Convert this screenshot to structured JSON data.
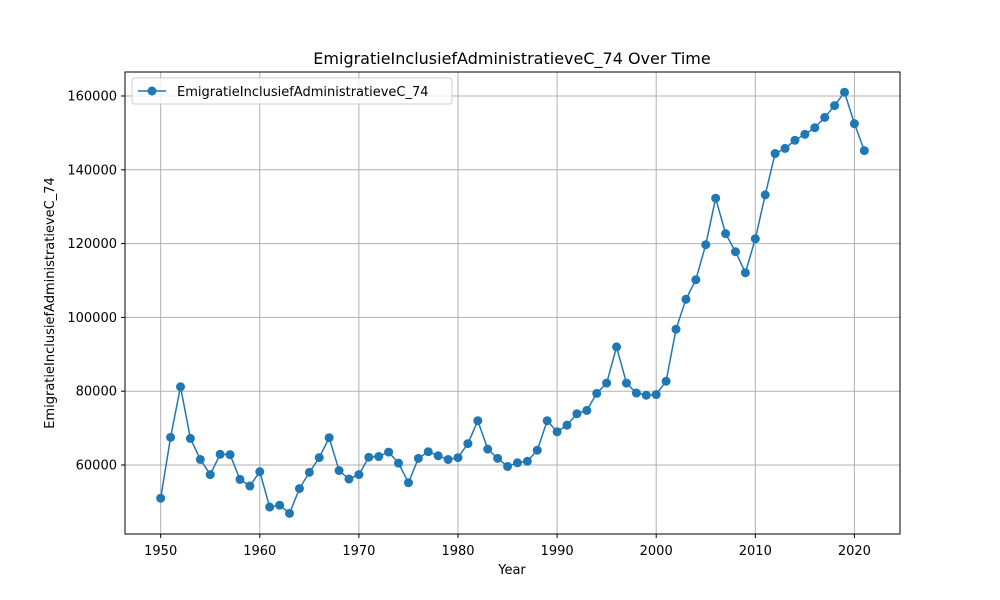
{
  "chart_data": {
    "type": "line",
    "title": "EmigratieInclusiefAdministratieveC_74 Over Time",
    "xlabel": "Year",
    "ylabel": "EmigratieInclusiefAdministratieveC_74",
    "xlim": [
      1946.4,
      2024.6
    ],
    "ylim": [
      41300,
      166500
    ],
    "xticks": [
      1950,
      1960,
      1970,
      1980,
      1990,
      2000,
      2010,
      2020
    ],
    "yticks": [
      60000,
      80000,
      100000,
      120000,
      140000,
      160000
    ],
    "grid": true,
    "legend_position": "top-left",
    "series": [
      {
        "name": "EmigratieInclusiefAdministratieveC_74",
        "color": "#1f77b4",
        "marker": "circle",
        "x": [
          1950,
          1951,
          1952,
          1953,
          1954,
          1955,
          1956,
          1957,
          1958,
          1959,
          1960,
          1961,
          1962,
          1963,
          1964,
          1965,
          1966,
          1967,
          1968,
          1969,
          1970,
          1971,
          1972,
          1973,
          1974,
          1975,
          1976,
          1977,
          1978,
          1979,
          1980,
          1981,
          1982,
          1983,
          1984,
          1985,
          1986,
          1987,
          1988,
          1989,
          1990,
          1991,
          1992,
          1993,
          1994,
          1995,
          1996,
          1997,
          1998,
          1999,
          2000,
          2001,
          2002,
          2003,
          2004,
          2005,
          2006,
          2007,
          2008,
          2009,
          2010,
          2011,
          2012,
          2013,
          2014,
          2015,
          2016,
          2017,
          2018,
          2019,
          2020,
          2021
        ],
        "y": [
          51000,
          67500,
          81200,
          67200,
          61500,
          57400,
          62900,
          62800,
          56100,
          54300,
          58200,
          48600,
          49100,
          46900,
          53600,
          58000,
          62000,
          67400,
          58500,
          56200,
          57400,
          62100,
          62300,
          63500,
          60500,
          55200,
          61800,
          63600,
          62500,
          61500,
          62000,
          65800,
          72000,
          64300,
          61800,
          59600,
          60600,
          61000,
          64000,
          72000,
          69000,
          70800,
          73900,
          74800,
          79400,
          82200,
          92000,
          82200,
          79500,
          78900,
          79100,
          82700,
          96800,
          104900,
          110200,
          119700,
          132300,
          122700,
          117800,
          112100,
          121300,
          133200,
          144400,
          145800,
          148000,
          149600,
          151400,
          154200,
          157400,
          161000,
          152500,
          145200
        ]
      }
    ]
  }
}
